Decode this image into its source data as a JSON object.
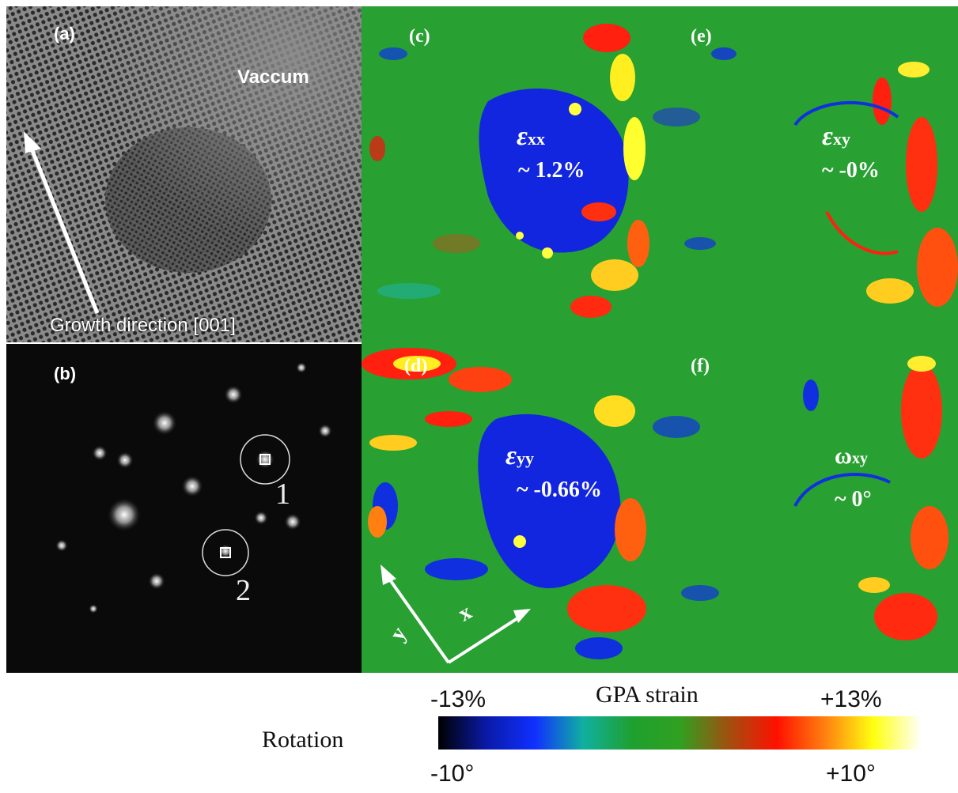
{
  "panels": {
    "a": {
      "label": "(a)",
      "vacuum": "Vaccum",
      "growth": "Growth direction [001]"
    },
    "b": {
      "label": "(b)",
      "spot1": "1",
      "spot2": "2"
    },
    "c": {
      "label": "(c)",
      "sym": "ε",
      "sub": "xx",
      "value": "~ 1.2%"
    },
    "d": {
      "label": "(d)",
      "sym": "ε",
      "sub": "yy",
      "value": "~ -0.66%",
      "axis_x": "x",
      "axis_y": "y"
    },
    "e": {
      "label": "(e)",
      "sym": "ε",
      "sub": "xy",
      "value": "~ -0%"
    },
    "f": {
      "label": "(f)",
      "sym": "ω",
      "sub": "xy",
      "value": "~ 0°"
    }
  },
  "colorbar": {
    "title": "GPA strain",
    "strain_min": "-13%",
    "strain_max": "+13%",
    "rotation_label": "Rotation",
    "rot_min": "-10°",
    "rot_max": "+10°",
    "colors": [
      "#000000",
      "#0a1aa8",
      "#1030ff",
      "#10b0a0",
      "#1ea030",
      "#30a020",
      "#a05010",
      "#ff1000",
      "#ff8010",
      "#ffff10",
      "#ffffff"
    ]
  }
}
